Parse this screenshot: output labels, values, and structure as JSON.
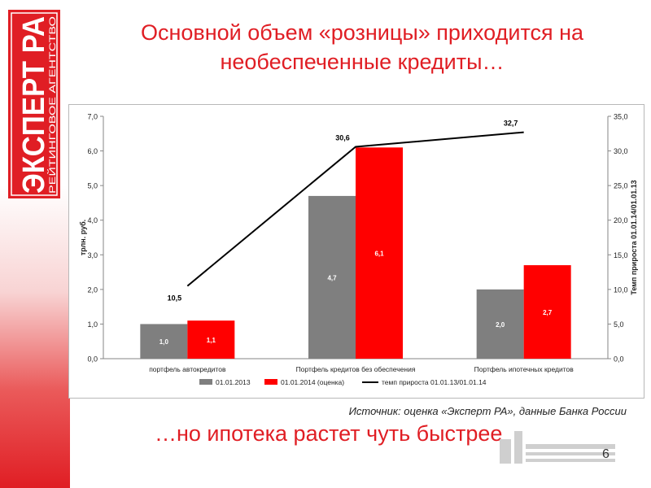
{
  "slide": {
    "title": "Основной объем «розницы» приходится на необеспеченные кредиты…",
    "subtitle": "…но ипотека растет чуть быстрее",
    "source": "Источник: оценка «Эксперт РА», данные Банка России",
    "page_number": "6",
    "logo": {
      "line1": "ЭКСПЕРТ РА",
      "line2": "РЕЙТИНГОВОЕ АГЕНТСТВО"
    }
  },
  "colors": {
    "accent": "#e01e24",
    "bar_2013": "#7f7f7f",
    "bar_2014": "#ff0000",
    "growth_line": "#000000"
  },
  "chart_data": {
    "type": "bar",
    "categories": [
      "портфель автокредитов",
      "Портфель кредитов без обеспечения",
      "Портфель ипотечных кредитов"
    ],
    "series": [
      {
        "name": "01.01.2013",
        "values": [
          1.0,
          4.7,
          2.0
        ],
        "labels": [
          "1,0",
          "4,7",
          "2,0"
        ],
        "color": "#7f7f7f",
        "axis": "left"
      },
      {
        "name": "01.01.2014 (оценка)",
        "values": [
          1.1,
          6.1,
          2.7
        ],
        "labels": [
          "1,1",
          "6,1",
          "2,7"
        ],
        "color": "#ff0000",
        "axis": "left"
      },
      {
        "name": "темп прироста 01.01.13/01.01.14",
        "type": "line",
        "values": [
          10.5,
          30.6,
          32.7
        ],
        "labels": [
          "10,5",
          "30,6",
          "32,7"
        ],
        "color": "#000000",
        "axis": "right"
      }
    ],
    "ylabel": "трлн. руб.",
    "ylabel_right": "Темп прироста 01.01.14/01.01.13",
    "ylim": [
      0,
      7
    ],
    "ylim_right": [
      0,
      35
    ],
    "yticks": [
      "0,0",
      "1,0",
      "2,0",
      "3,0",
      "4,0",
      "5,0",
      "6,0",
      "7,0"
    ],
    "yticks_right": [
      "0,0",
      "5,0",
      "10,0",
      "15,0",
      "20,0",
      "25,0",
      "30,0",
      "35,0"
    ],
    "grid": false,
    "legend_position": "bottom"
  }
}
